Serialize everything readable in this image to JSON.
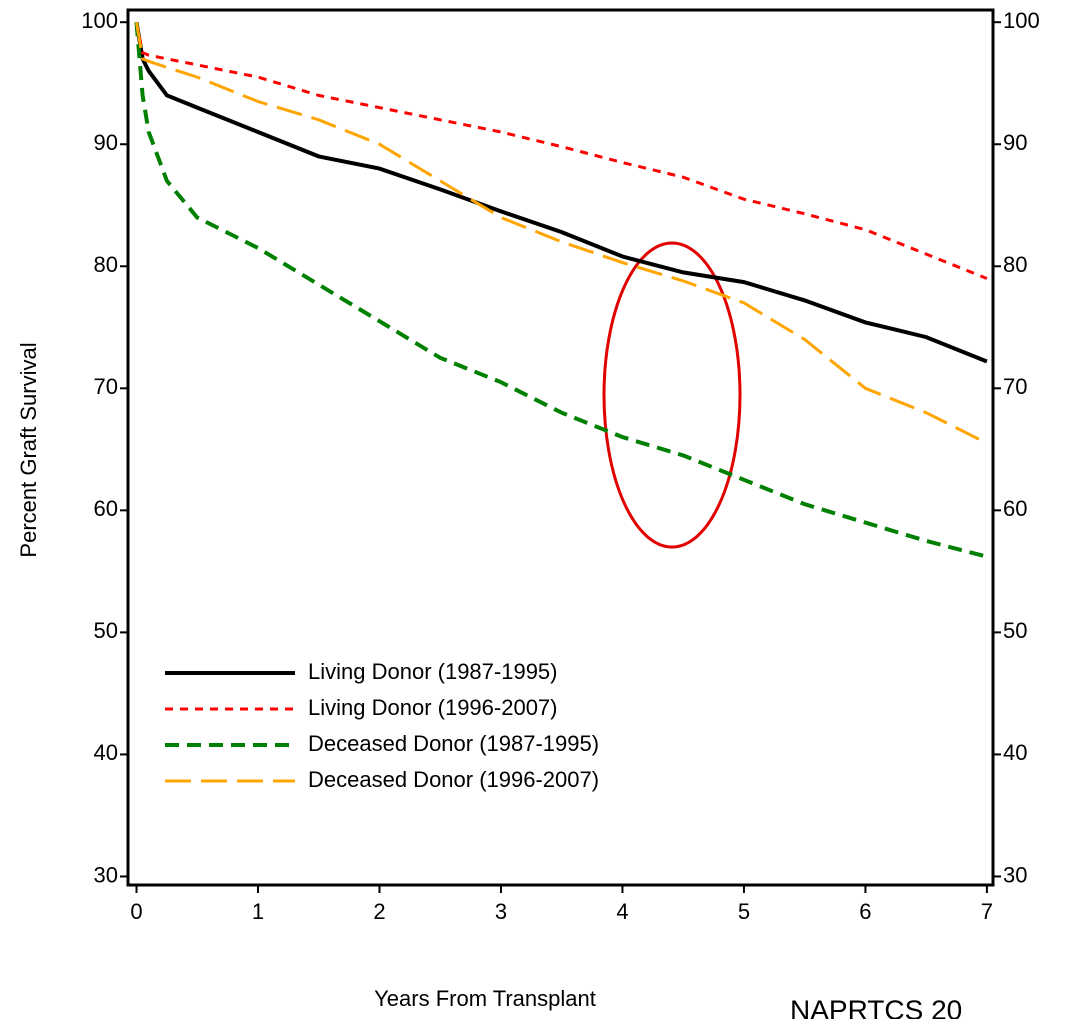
{
  "chart_data": {
    "type": "line",
    "x_label": "Years From Transplant",
    "y_label": "Percent Graft Survival",
    "source": "NAPRTCS 20",
    "x": [
      0,
      0.05,
      0.1,
      0.25,
      0.5,
      1,
      1.5,
      2,
      2.5,
      3,
      3.5,
      4,
      4.5,
      5,
      5.5,
      6,
      6.5,
      7
    ],
    "series": [
      {
        "name": "Living Donor (1987-1995)",
        "color": "#000000",
        "dash": "solid",
        "values": [
          100,
          97,
          96,
          94,
          93,
          91,
          89,
          88,
          86.3,
          84.5,
          82.8,
          80.8,
          79.5,
          78.7,
          77.2,
          75.4,
          74.2,
          72.2
        ]
      },
      {
        "name": "Living Donor (1996-2007)",
        "color": "#ff0000",
        "dash": "short",
        "values": [
          100,
          97.5,
          97.3,
          97,
          96.5,
          95.5,
          94,
          93,
          92,
          91,
          89.8,
          88.5,
          87.3,
          85.5,
          84.3,
          83,
          81,
          79
        ]
      },
      {
        "name": "Deceased Donor (1987-1995)",
        "color": "#008000",
        "dash": "medium",
        "values": [
          100,
          94,
          91,
          87,
          84,
          81.5,
          78.5,
          75.5,
          72.5,
          70.5,
          68,
          66,
          64.5,
          62.5,
          60.5,
          59,
          57.5,
          56.2
        ]
      },
      {
        "name": "Deceased Donor (1996-2007)",
        "color": "#ffa500",
        "dash": "long",
        "values": [
          100,
          97,
          96.8,
          96.3,
          95.5,
          93.5,
          92,
          90,
          87,
          84,
          82,
          80.3,
          78.8,
          77,
          74,
          70,
          68,
          65.5
        ]
      }
    ],
    "xlim": [
      -0.07,
      7.05
    ],
    "xticks": [
      0,
      1,
      2,
      3,
      4,
      5,
      6,
      7
    ],
    "ylim": [
      29.3,
      101
    ],
    "yticks": [
      30,
      40,
      50,
      60,
      70,
      80,
      90,
      100
    ],
    "right_axis_mirror": true,
    "grid": false,
    "legend": "lower left"
  }
}
